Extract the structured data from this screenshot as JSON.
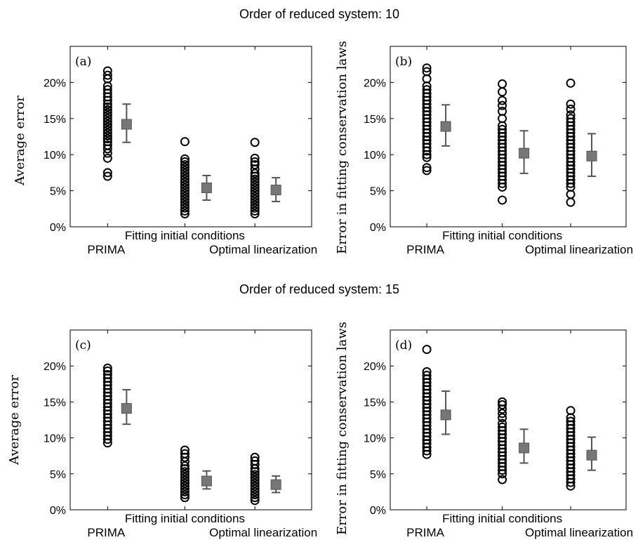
{
  "figure": {
    "titles": [
      "Order of reduced system: 10",
      "Order of reduced system: 15"
    ]
  },
  "chart_data": [
    {
      "type": "scatter",
      "panel_label": "(a)",
      "ylabel": "Average error",
      "yticks": [
        "0%",
        "5%",
        "10%",
        "15%",
        "20%"
      ],
      "ylim": [
        0,
        25
      ],
      "categories": [
        "PRIMA",
        "Fitting initial conditions",
        "Optimal linearization"
      ],
      "grid": false,
      "series": [
        {
          "points": [
            7.0,
            7.5,
            9.5,
            10.2,
            10.8,
            11.3,
            11.8,
            12.2,
            12.6,
            13.0,
            13.4,
            13.8,
            14.2,
            14.6,
            15.0,
            15.4,
            15.8,
            16.2,
            16.6,
            17.0,
            17.5,
            18.0,
            18.5,
            19.0,
            19.5,
            20.5,
            21.0,
            21.6
          ],
          "mean": 14.2,
          "lower": 11.7,
          "upper": 17.0
        },
        {
          "points": [
            1.8,
            2.2,
            2.6,
            3.0,
            3.4,
            3.8,
            4.2,
            4.6,
            5.0,
            5.4,
            5.8,
            6.2,
            6.6,
            7.0,
            7.4,
            7.8,
            8.2,
            8.6,
            9.0,
            9.4,
            11.8
          ],
          "mean": 5.4,
          "lower": 3.7,
          "upper": 7.1
        },
        {
          "points": [
            1.8,
            2.2,
            2.6,
            3.0,
            3.4,
            3.8,
            4.2,
            4.6,
            5.0,
            5.4,
            5.8,
            6.2,
            6.6,
            7.0,
            7.4,
            8.0,
            8.6,
            9.0,
            9.5,
            11.7
          ],
          "mean": 5.1,
          "lower": 3.5,
          "upper": 6.8
        }
      ]
    },
    {
      "type": "scatter",
      "panel_label": "(b)",
      "ylabel": "Error in fitting conservation laws",
      "yticks": [
        "0%",
        "5%",
        "10%",
        "15%",
        "20%"
      ],
      "ylim": [
        0,
        25
      ],
      "categories": [
        "PRIMA",
        "Fitting initial conditions",
        "Optimal linearization"
      ],
      "grid": false,
      "series": [
        {
          "points": [
            7.8,
            8.2,
            9.6,
            10.0,
            10.5,
            11.0,
            11.5,
            12.0,
            12.5,
            13.0,
            13.5,
            14.0,
            14.5,
            15.0,
            15.5,
            16.0,
            16.5,
            17.0,
            17.5,
            18.0,
            18.5,
            19.0,
            19.5,
            20.5,
            21.5,
            22.0
          ],
          "mean": 13.9,
          "lower": 11.2,
          "upper": 16.9
        },
        {
          "points": [
            3.7,
            5.5,
            6.0,
            6.5,
            7.0,
            7.5,
            8.0,
            8.5,
            9.0,
            9.5,
            10.0,
            10.5,
            11.0,
            11.5,
            12.0,
            12.5,
            13.0,
            13.5,
            14.0,
            15.0,
            16.0,
            16.8,
            17.5,
            18.7,
            19.8
          ],
          "mean": 10.2,
          "lower": 7.4,
          "upper": 13.3
        },
        {
          "points": [
            3.4,
            4.5,
            5.5,
            6.0,
            6.5,
            7.0,
            7.5,
            8.0,
            8.5,
            9.0,
            9.5,
            10.0,
            10.5,
            11.0,
            11.5,
            12.0,
            12.5,
            13.0,
            13.5,
            14.0,
            14.5,
            15.0,
            15.5,
            16.3,
            17.0,
            19.9
          ],
          "mean": 9.8,
          "lower": 7.0,
          "upper": 12.9
        }
      ]
    },
    {
      "type": "scatter",
      "panel_label": "(c)",
      "ylabel": "Average error",
      "yticks": [
        "0%",
        "5%",
        "10%",
        "15%",
        "20%"
      ],
      "ylim": [
        0,
        25
      ],
      "categories": [
        "PRIMA",
        "Fitting initial conditions",
        "Optimal linearization"
      ],
      "grid": false,
      "series": [
        {
          "points": [
            9.3,
            9.8,
            10.3,
            10.8,
            11.3,
            11.8,
            12.3,
            12.8,
            13.3,
            13.8,
            14.3,
            14.8,
            15.3,
            15.8,
            16.3,
            16.8,
            17.3,
            17.8,
            18.3,
            18.8,
            19.3,
            19.7
          ],
          "mean": 14.1,
          "lower": 11.9,
          "upper": 16.7
        },
        {
          "points": [
            1.7,
            2.1,
            2.5,
            2.9,
            3.3,
            3.7,
            4.1,
            4.5,
            4.9,
            5.3,
            5.7,
            6.1,
            6.7,
            7.3,
            7.8,
            8.3
          ],
          "mean": 4.0,
          "lower": 2.9,
          "upper": 5.4
        },
        {
          "points": [
            1.3,
            1.7,
            2.1,
            2.5,
            2.9,
            3.3,
            3.7,
            4.1,
            4.5,
            4.9,
            5.3,
            5.7,
            6.3,
            6.8,
            7.3
          ],
          "mean": 3.5,
          "lower": 2.4,
          "upper": 4.7
        }
      ]
    },
    {
      "type": "scatter",
      "panel_label": "(d)",
      "ylabel": "Error in fitting conservation laws",
      "yticks": [
        "0%",
        "5%",
        "10%",
        "15%",
        "20%"
      ],
      "ylim": [
        0,
        25
      ],
      "categories": [
        "PRIMA",
        "Fitting initial conditions",
        "Optimal linearization"
      ],
      "grid": false,
      "series": [
        {
          "points": [
            7.7,
            8.2,
            8.7,
            9.2,
            9.7,
            10.2,
            10.7,
            11.2,
            11.7,
            12.2,
            12.7,
            13.2,
            13.7,
            14.2,
            14.7,
            15.2,
            15.7,
            16.2,
            16.7,
            17.2,
            17.7,
            18.2,
            18.7,
            19.2,
            22.3
          ],
          "mean": 13.2,
          "lower": 10.5,
          "upper": 16.5
        },
        {
          "points": [
            4.2,
            5.0,
            5.5,
            6.0,
            6.5,
            7.0,
            7.5,
            8.0,
            8.5,
            9.0,
            9.5,
            10.0,
            10.5,
            11.0,
            11.5,
            12.0,
            12.8,
            13.4,
            14.0,
            14.6,
            15.0
          ],
          "mean": 8.6,
          "lower": 6.5,
          "upper": 11.2
        },
        {
          "points": [
            3.3,
            3.8,
            4.3,
            4.8,
            5.3,
            5.8,
            6.3,
            6.8,
            7.3,
            7.8,
            8.3,
            8.8,
            9.3,
            9.8,
            10.3,
            10.8,
            11.3,
            11.8,
            12.3,
            12.8,
            13.8
          ],
          "mean": 7.6,
          "lower": 5.5,
          "upper": 10.1
        }
      ]
    }
  ]
}
